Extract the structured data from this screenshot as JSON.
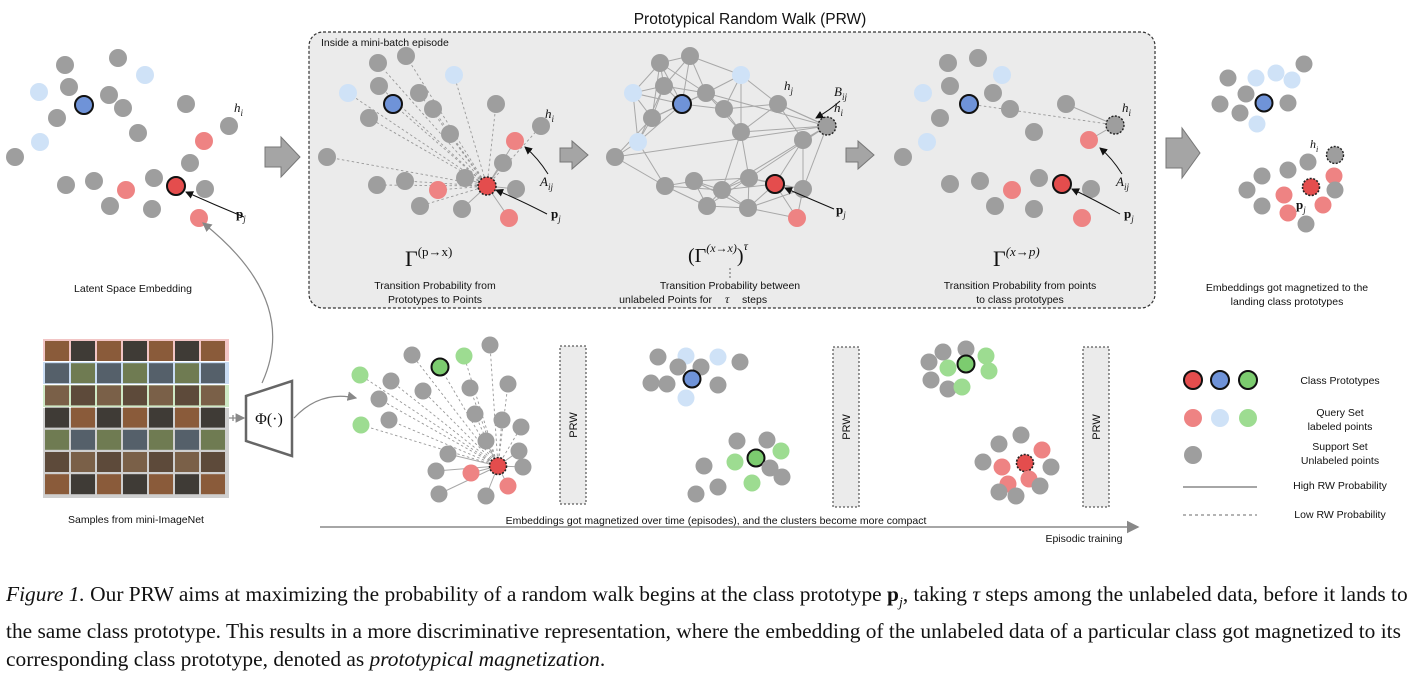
{
  "diagram": {
    "title": "Prototypical Random Walk (PRW)",
    "inside_label": "Inside a mini-batch episode",
    "labels": {
      "latent": "Latent Space Embedding",
      "samples": "Samples from mini-ImageNet",
      "magnetized_l1": "Embeddings got magnetized to the",
      "magnetized_l2": "landing class prototypes",
      "t1_l1": "Transition Probability from",
      "t1_l2": "Prototypes to Points",
      "t2_l1": "Transition Probability between",
      "t2_l2": "unlabeled Points for",
      "t2_steps": "steps",
      "t3_l1": "Transition Probability from points",
      "t3_l2": "to class prototypes",
      "magnetized_time": "Embeddings got magnetized over time (episodes), and the clusters become more compact",
      "episodic": "Episodic training",
      "prw": "PRW",
      "phi": "Φ(·)",
      "gamma": "Γ",
      "gamma_sup1": "(p→x)",
      "gamma_sup2": "(x→x)",
      "gamma_sup3": "(x→p)",
      "tau": "τ",
      "hi": "h",
      "sub_i": "i",
      "sub_j": "j",
      "sub_ij": "ij",
      "pj": "p",
      "aij": "A",
      "bij": "B"
    },
    "legend": {
      "prototypes": "Class Prototypes",
      "query_l1": "Query Set",
      "query_l2": "labeled points",
      "support_l1": "Support Set",
      "support_l2": "Unlabeled points",
      "high": "High RW Probability",
      "low": "Low RW Probability"
    },
    "colors": {
      "red": "#ee8383",
      "red_proto": "#e44d4d",
      "blue": "#cfe2f7",
      "blue_proto": "#6f93d8",
      "green": "#9ddc91",
      "green_proto": "#7ccc6f",
      "gray": "#9e9e9e"
    }
  },
  "caption": {
    "prefix": "Figure 1.",
    "part1": " Our PRW aims at maximizing the probability of a random walk begins at the class prototype ",
    "pj": "p",
    "sub_j": "j",
    "part2": ", taking ",
    "tau": "τ",
    "part3": " steps among the unlabeled data, before it lands to the same class prototype. This results in a more discriminative representation, where the embedding of the unlabeled data of a particular class got magnetized to its corresponding class prototype, denoted as ",
    "italic_end": "prototypical magnetization",
    "period": "."
  }
}
